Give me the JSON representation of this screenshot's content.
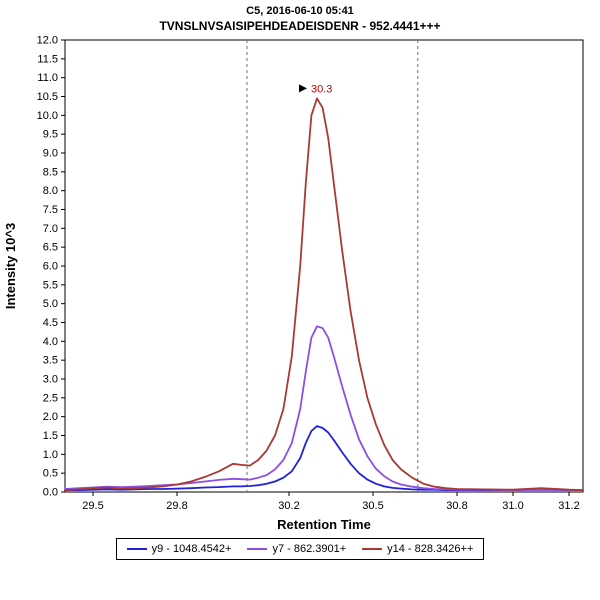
{
  "header": {
    "title": "C5, 2016-06-10 05:41",
    "subtitle": "TVNSLNVSAISIPEHDEADEISDENR - 952.4441+++"
  },
  "axes": {
    "x_label": "Retention Time",
    "y_label": "Intensity 10^3",
    "x_range": [
      29.4,
      31.25
    ],
    "y_range": [
      0,
      12
    ],
    "y_tick_step": 0.5,
    "x_ticks": [
      29.5,
      29.8,
      30.2,
      30.5,
      30.8,
      31.0,
      31.2
    ],
    "x_tick_labels": [
      "29.5",
      "29.8",
      "30.2",
      "30.5",
      "30.8",
      "31.0",
      "31.2"
    ]
  },
  "chart_data": {
    "type": "line",
    "title": "C5, 2016-06-10 05:41",
    "subtitle": "TVNSLNVSAISIPEHDEADEISDENR - 952.4441+++",
    "xlabel": "Retention Time",
    "ylabel": "Intensity 10^3",
    "xlim": [
      29.4,
      31.25
    ],
    "ylim": [
      0,
      12
    ],
    "grid": false,
    "legend_position": "bottom",
    "x": [
      29.4,
      29.45,
      29.5,
      29.55,
      29.6,
      29.65,
      29.7,
      29.75,
      29.8,
      29.85,
      29.9,
      29.95,
      30.0,
      30.03,
      30.06,
      30.09,
      30.12,
      30.15,
      30.18,
      30.21,
      30.24,
      30.26,
      30.28,
      30.3,
      30.32,
      30.34,
      30.36,
      30.39,
      30.42,
      30.45,
      30.48,
      30.51,
      30.54,
      30.57,
      30.6,
      30.64,
      30.68,
      30.72,
      30.76,
      30.8,
      30.9,
      31.0,
      31.1,
      31.2,
      31.25
    ],
    "series": [
      {
        "name": "y9 - 1048.4542+",
        "color": "#2020DD",
        "values": [
          0.05,
          0.05,
          0.06,
          0.07,
          0.06,
          0.07,
          0.08,
          0.08,
          0.09,
          0.1,
          0.12,
          0.13,
          0.15,
          0.15,
          0.16,
          0.18,
          0.22,
          0.28,
          0.38,
          0.55,
          0.9,
          1.3,
          1.62,
          1.75,
          1.7,
          1.58,
          1.38,
          1.05,
          0.75,
          0.5,
          0.33,
          0.22,
          0.15,
          0.11,
          0.09,
          0.07,
          0.06,
          0.06,
          0.05,
          0.05,
          0.05,
          0.05,
          0.06,
          0.05,
          0.05
        ]
      },
      {
        "name": "y7 - 862.3901+",
        "color": "#8C4FE4",
        "values": [
          0.08,
          0.1,
          0.12,
          0.14,
          0.13,
          0.14,
          0.16,
          0.18,
          0.2,
          0.24,
          0.28,
          0.32,
          0.35,
          0.34,
          0.33,
          0.38,
          0.45,
          0.6,
          0.85,
          1.3,
          2.2,
          3.2,
          4.1,
          4.4,
          4.35,
          4.1,
          3.6,
          2.8,
          2.05,
          1.4,
          0.95,
          0.62,
          0.42,
          0.28,
          0.2,
          0.14,
          0.1,
          0.08,
          0.07,
          0.06,
          0.06,
          0.05,
          0.06,
          0.05,
          0.05
        ]
      },
      {
        "name": "y14 - 828.3426++",
        "color": "#A83A32",
        "values": [
          0.05,
          0.07,
          0.1,
          0.12,
          0.09,
          0.1,
          0.12,
          0.15,
          0.2,
          0.28,
          0.4,
          0.55,
          0.75,
          0.72,
          0.7,
          0.85,
          1.1,
          1.5,
          2.2,
          3.6,
          6.0,
          8.2,
          10.0,
          10.45,
          10.2,
          9.4,
          8.2,
          6.4,
          4.8,
          3.5,
          2.5,
          1.8,
          1.25,
          0.85,
          0.6,
          0.38,
          0.22,
          0.14,
          0.1,
          0.08,
          0.07,
          0.06,
          0.1,
          0.06,
          0.05
        ]
      }
    ],
    "annotations": [
      {
        "x": 30.3,
        "y": 10.45,
        "label": "30.3",
        "color": "#C00000"
      }
    ],
    "integration_boundaries": [
      30.05,
      30.66
    ]
  },
  "legend": {
    "items": [
      {
        "label": "y9 - 1048.4542+",
        "color": "#2020DD"
      },
      {
        "label": "y7 - 862.3901+",
        "color": "#8C4FE4"
      },
      {
        "label": "y14 - 828.3426++",
        "color": "#A83A32"
      }
    ]
  }
}
